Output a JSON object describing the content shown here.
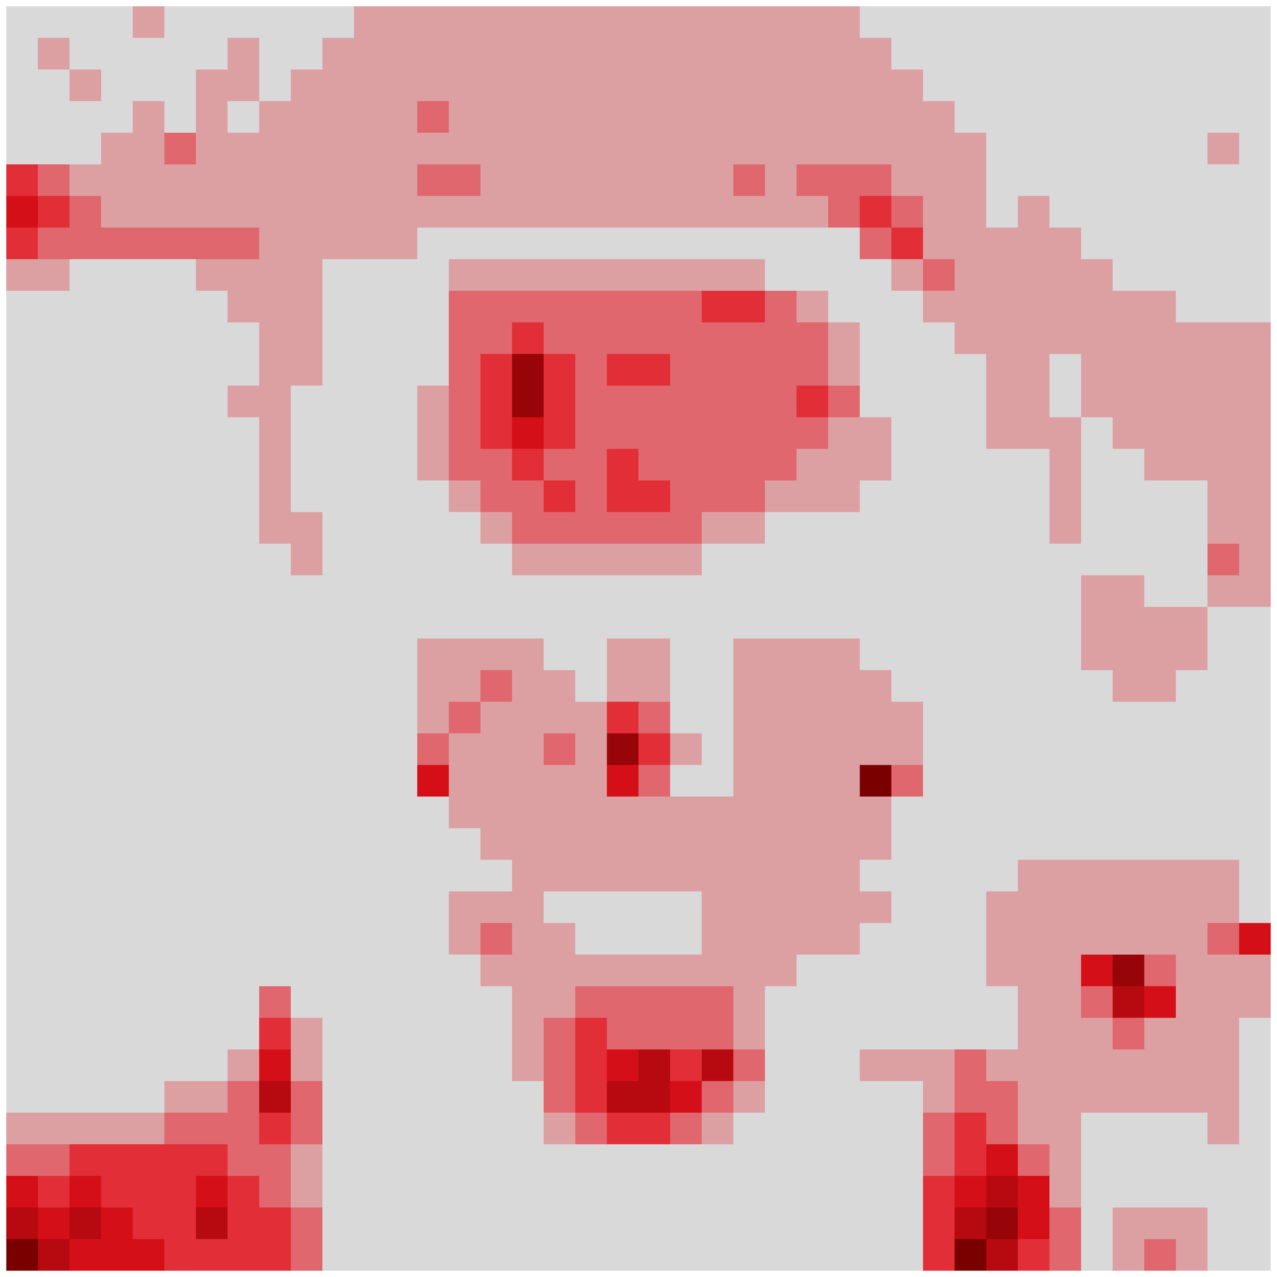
{
  "chart_data": {
    "type": "heatmap",
    "tick_labels": false,
    "cells": [
      [
        0,
        0,
        0,
        0,
        1,
        0,
        0,
        0,
        0,
        0,
        0,
        1,
        1,
        1,
        1,
        1,
        1,
        1,
        1,
        1,
        1,
        1,
        1,
        1,
        1,
        1,
        1,
        0,
        0,
        0,
        0,
        0,
        0,
        0,
        0,
        0,
        0,
        0,
        0,
        0
      ],
      [
        0,
        1,
        0,
        0,
        0,
        0,
        0,
        1,
        0,
        0,
        1,
        1,
        1,
        1,
        1,
        1,
        1,
        1,
        1,
        1,
        1,
        1,
        1,
        1,
        1,
        1,
        1,
        1,
        0,
        0,
        0,
        0,
        0,
        0,
        0,
        0,
        0,
        0,
        0,
        0
      ],
      [
        0,
        0,
        1,
        0,
        0,
        0,
        1,
        1,
        0,
        1,
        1,
        1,
        1,
        1,
        1,
        1,
        1,
        1,
        1,
        1,
        1,
        1,
        1,
        1,
        1,
        1,
        1,
        1,
        1,
        0,
        0,
        0,
        0,
        0,
        0,
        0,
        0,
        0,
        0,
        0
      ],
      [
        0,
        0,
        0,
        0,
        1,
        0,
        1,
        0,
        1,
        1,
        1,
        1,
        1,
        2,
        1,
        1,
        1,
        1,
        1,
        1,
        1,
        1,
        1,
        1,
        1,
        1,
        1,
        1,
        1,
        1,
        0,
        0,
        0,
        0,
        0,
        0,
        0,
        0,
        0,
        0
      ],
      [
        0,
        0,
        0,
        1,
        1,
        2,
        1,
        1,
        1,
        1,
        1,
        1,
        1,
        1,
        1,
        1,
        1,
        1,
        1,
        1,
        1,
        1,
        1,
        1,
        1,
        1,
        1,
        1,
        1,
        1,
        1,
        0,
        0,
        0,
        0,
        0,
        0,
        0,
        1,
        0
      ],
      [
        3,
        2,
        1,
        1,
        1,
        1,
        1,
        1,
        1,
        1,
        1,
        1,
        1,
        2,
        2,
        1,
        1,
        1,
        1,
        1,
        1,
        1,
        1,
        2,
        1,
        2,
        2,
        2,
        1,
        1,
        1,
        0,
        0,
        0,
        0,
        0,
        0,
        0,
        0,
        0
      ],
      [
        4,
        3,
        2,
        1,
        1,
        1,
        1,
        1,
        1,
        1,
        1,
        1,
        1,
        1,
        1,
        1,
        1,
        1,
        1,
        1,
        1,
        1,
        1,
        1,
        1,
        1,
        2,
        3,
        2,
        1,
        1,
        0,
        1,
        0,
        0,
        0,
        0,
        0,
        0,
        0
      ],
      [
        3,
        2,
        2,
        2,
        2,
        2,
        2,
        2,
        1,
        1,
        1,
        1,
        1,
        0,
        0,
        0,
        0,
        0,
        0,
        0,
        0,
        0,
        0,
        0,
        0,
        0,
        0,
        2,
        3,
        1,
        1,
        1,
        1,
        1,
        0,
        0,
        0,
        0,
        0,
        0
      ],
      [
        1,
        1,
        0,
        0,
        0,
        0,
        1,
        1,
        1,
        1,
        0,
        0,
        0,
        0,
        1,
        1,
        1,
        1,
        1,
        1,
        1,
        1,
        1,
        1,
        0,
        0,
        0,
        0,
        1,
        2,
        1,
        1,
        1,
        1,
        1,
        0,
        0,
        0,
        0,
        0
      ],
      [
        0,
        0,
        0,
        0,
        0,
        0,
        0,
        1,
        1,
        1,
        0,
        0,
        0,
        0,
        2,
        2,
        2,
        2,
        2,
        2,
        2,
        2,
        3,
        3,
        2,
        1,
        0,
        0,
        0,
        1,
        1,
        1,
        1,
        1,
        1,
        1,
        1,
        0,
        0,
        0
      ],
      [
        0,
        0,
        0,
        0,
        0,
        0,
        0,
        0,
        1,
        1,
        0,
        0,
        0,
        0,
        2,
        2,
        3,
        2,
        2,
        2,
        2,
        2,
        2,
        2,
        2,
        2,
        1,
        0,
        0,
        0,
        1,
        1,
        1,
        1,
        1,
        1,
        1,
        1,
        1,
        1
      ],
      [
        0,
        0,
        0,
        0,
        0,
        0,
        0,
        0,
        1,
        1,
        0,
        0,
        0,
        0,
        2,
        3,
        6,
        3,
        2,
        3,
        3,
        2,
        2,
        2,
        2,
        2,
        1,
        0,
        0,
        0,
        0,
        1,
        1,
        0,
        1,
        1,
        1,
        1,
        1,
        1
      ],
      [
        0,
        0,
        0,
        0,
        0,
        0,
        0,
        1,
        1,
        0,
        0,
        0,
        0,
        1,
        2,
        3,
        6,
        3,
        2,
        2,
        2,
        2,
        2,
        2,
        2,
        3,
        2,
        0,
        0,
        0,
        0,
        1,
        1,
        0,
        1,
        1,
        1,
        1,
        1,
        1
      ],
      [
        0,
        0,
        0,
        0,
        0,
        0,
        0,
        0,
        1,
        0,
        0,
        0,
        0,
        1,
        2,
        3,
        4,
        3,
        2,
        2,
        2,
        2,
        2,
        2,
        2,
        2,
        1,
        1,
        0,
        0,
        0,
        1,
        1,
        1,
        0,
        1,
        1,
        1,
        1,
        1
      ],
      [
        0,
        0,
        0,
        0,
        0,
        0,
        0,
        0,
        1,
        0,
        0,
        0,
        0,
        1,
        2,
        2,
        3,
        2,
        2,
        3,
        2,
        2,
        2,
        2,
        2,
        1,
        1,
        1,
        0,
        0,
        0,
        0,
        0,
        1,
        0,
        0,
        1,
        1,
        1,
        1
      ],
      [
        0,
        0,
        0,
        0,
        0,
        0,
        0,
        0,
        1,
        0,
        0,
        0,
        0,
        0,
        1,
        2,
        2,
        3,
        2,
        3,
        3,
        2,
        2,
        2,
        1,
        1,
        1,
        0,
        0,
        0,
        0,
        0,
        0,
        1,
        0,
        0,
        0,
        0,
        1,
        1
      ],
      [
        0,
        0,
        0,
        0,
        0,
        0,
        0,
        0,
        1,
        1,
        0,
        0,
        0,
        0,
        0,
        1,
        2,
        2,
        2,
        2,
        2,
        2,
        1,
        1,
        0,
        0,
        0,
        0,
        0,
        0,
        0,
        0,
        0,
        1,
        0,
        0,
        0,
        0,
        1,
        1
      ],
      [
        0,
        0,
        0,
        0,
        0,
        0,
        0,
        0,
        0,
        1,
        0,
        0,
        0,
        0,
        0,
        0,
        1,
        1,
        1,
        1,
        1,
        1,
        0,
        0,
        0,
        0,
        0,
        0,
        0,
        0,
        0,
        0,
        0,
        0,
        0,
        0,
        0,
        0,
        2,
        1
      ],
      [
        0,
        0,
        0,
        0,
        0,
        0,
        0,
        0,
        0,
        0,
        0,
        0,
        0,
        0,
        0,
        0,
        0,
        0,
        0,
        0,
        0,
        0,
        0,
        0,
        0,
        0,
        0,
        0,
        0,
        0,
        0,
        0,
        0,
        0,
        1,
        1,
        0,
        0,
        1,
        1
      ],
      [
        0,
        0,
        0,
        0,
        0,
        0,
        0,
        0,
        0,
        0,
        0,
        0,
        0,
        0,
        0,
        0,
        0,
        0,
        0,
        0,
        0,
        0,
        0,
        0,
        0,
        0,
        0,
        0,
        0,
        0,
        0,
        0,
        0,
        0,
        1,
        1,
        1,
        1,
        0,
        0
      ],
      [
        0,
        0,
        0,
        0,
        0,
        0,
        0,
        0,
        0,
        0,
        0,
        0,
        0,
        1,
        1,
        1,
        1,
        0,
        0,
        1,
        1,
        0,
        0,
        1,
        1,
        1,
        1,
        0,
        0,
        0,
        0,
        0,
        0,
        0,
        1,
        1,
        1,
        1,
        0,
        0
      ],
      [
        0,
        0,
        0,
        0,
        0,
        0,
        0,
        0,
        0,
        0,
        0,
        0,
        0,
        1,
        1,
        2,
        1,
        1,
        0,
        1,
        1,
        0,
        0,
        1,
        1,
        1,
        1,
        1,
        0,
        0,
        0,
        0,
        0,
        0,
        0,
        1,
        1,
        0,
        0,
        0
      ],
      [
        0,
        0,
        0,
        0,
        0,
        0,
        0,
        0,
        0,
        0,
        0,
        0,
        0,
        1,
        2,
        1,
        1,
        1,
        1,
        3,
        2,
        0,
        0,
        1,
        1,
        1,
        1,
        1,
        1,
        0,
        0,
        0,
        0,
        0,
        0,
        0,
        0,
        0,
        0,
        0
      ],
      [
        0,
        0,
        0,
        0,
        0,
        0,
        0,
        0,
        0,
        0,
        0,
        0,
        0,
        2,
        1,
        1,
        1,
        2,
        1,
        6,
        3,
        1,
        0,
        1,
        1,
        1,
        1,
        1,
        1,
        0,
        0,
        0,
        0,
        0,
        0,
        0,
        0,
        0,
        0,
        0
      ],
      [
        0,
        0,
        0,
        0,
        0,
        0,
        0,
        0,
        0,
        0,
        0,
        0,
        0,
        4,
        1,
        1,
        1,
        1,
        1,
        4,
        2,
        0,
        0,
        1,
        1,
        1,
        1,
        7,
        2,
        0,
        0,
        0,
        0,
        0,
        0,
        0,
        0,
        0,
        0,
        0
      ],
      [
        0,
        0,
        0,
        0,
        0,
        0,
        0,
        0,
        0,
        0,
        0,
        0,
        0,
        0,
        1,
        1,
        1,
        1,
        1,
        1,
        1,
        1,
        1,
        1,
        1,
        1,
        1,
        1,
        0,
        0,
        0,
        0,
        0,
        0,
        0,
        0,
        0,
        0,
        0,
        0
      ],
      [
        0,
        0,
        0,
        0,
        0,
        0,
        0,
        0,
        0,
        0,
        0,
        0,
        0,
        0,
        0,
        1,
        1,
        1,
        1,
        1,
        1,
        1,
        1,
        1,
        1,
        1,
        1,
        1,
        0,
        0,
        0,
        0,
        0,
        0,
        0,
        0,
        0,
        0,
        0,
        0
      ],
      [
        0,
        0,
        0,
        0,
        0,
        0,
        0,
        0,
        0,
        0,
        0,
        0,
        0,
        0,
        0,
        0,
        1,
        1,
        1,
        1,
        1,
        1,
        1,
        1,
        1,
        1,
        1,
        0,
        0,
        0,
        0,
        0,
        1,
        1,
        1,
        1,
        1,
        1,
        1,
        0
      ],
      [
        0,
        0,
        0,
        0,
        0,
        0,
        0,
        0,
        0,
        0,
        0,
        0,
        0,
        0,
        1,
        1,
        1,
        0,
        0,
        0,
        0,
        0,
        1,
        1,
        1,
        1,
        1,
        1,
        0,
        0,
        0,
        1,
        1,
        1,
        1,
        1,
        1,
        1,
        1,
        0
      ],
      [
        0,
        0,
        0,
        0,
        0,
        0,
        0,
        0,
        0,
        0,
        0,
        0,
        0,
        0,
        1,
        2,
        1,
        1,
        0,
        0,
        0,
        0,
        1,
        1,
        1,
        1,
        1,
        0,
        0,
        0,
        0,
        1,
        1,
        1,
        1,
        1,
        1,
        1,
        2,
        4
      ],
      [
        0,
        0,
        0,
        0,
        0,
        0,
        0,
        0,
        0,
        0,
        0,
        0,
        0,
        0,
        0,
        1,
        1,
        1,
        1,
        1,
        1,
        1,
        1,
        1,
        1,
        0,
        0,
        0,
        0,
        0,
        0,
        1,
        1,
        1,
        4,
        6,
        2,
        1,
        1,
        1
      ],
      [
        0,
        0,
        0,
        0,
        0,
        0,
        0,
        0,
        2,
        0,
        0,
        0,
        0,
        0,
        0,
        0,
        1,
        1,
        2,
        2,
        2,
        2,
        2,
        1,
        0,
        0,
        0,
        0,
        0,
        0,
        0,
        0,
        1,
        1,
        2,
        5,
        4,
        1,
        1,
        1
      ],
      [
        0,
        0,
        0,
        0,
        0,
        0,
        0,
        0,
        3,
        1,
        0,
        0,
        0,
        0,
        0,
        0,
        1,
        2,
        3,
        2,
        2,
        2,
        2,
        1,
        0,
        0,
        0,
        0,
        0,
        0,
        0,
        0,
        1,
        1,
        1,
        2,
        1,
        1,
        1,
        0
      ],
      [
        0,
        0,
        0,
        0,
        0,
        0,
        0,
        1,
        4,
        1,
        0,
        0,
        0,
        0,
        0,
        0,
        1,
        2,
        3,
        4,
        5,
        3,
        5,
        2,
        0,
        0,
        0,
        1,
        1,
        1,
        2,
        1,
        1,
        1,
        1,
        1,
        1,
        1,
        1,
        0
      ],
      [
        0,
        0,
        0,
        0,
        0,
        1,
        1,
        2,
        5,
        2,
        0,
        0,
        0,
        0,
        0,
        0,
        0,
        2,
        3,
        5,
        5,
        4,
        2,
        1,
        0,
        0,
        0,
        0,
        0,
        1,
        2,
        2,
        1,
        1,
        1,
        1,
        1,
        1,
        1,
        0
      ],
      [
        1,
        1,
        1,
        1,
        1,
        2,
        2,
        2,
        3,
        2,
        0,
        0,
        0,
        0,
        0,
        0,
        0,
        1,
        2,
        3,
        3,
        2,
        1,
        0,
        0,
        0,
        0,
        0,
        0,
        2,
        3,
        2,
        1,
        1,
        0,
        0,
        0,
        0,
        1,
        0
      ],
      [
        2,
        2,
        3,
        3,
        3,
        3,
        3,
        2,
        2,
        1,
        0,
        0,
        0,
        0,
        0,
        0,
        0,
        0,
        0,
        0,
        0,
        0,
        0,
        0,
        0,
        0,
        0,
        0,
        0,
        2,
        3,
        4,
        2,
        1,
        0,
        0,
        0,
        0,
        0,
        0
      ],
      [
        4,
        3,
        4,
        3,
        3,
        3,
        4,
        3,
        2,
        1,
        0,
        0,
        0,
        0,
        0,
        0,
        0,
        0,
        0,
        0,
        0,
        0,
        0,
        0,
        0,
        0,
        0,
        0,
        0,
        3,
        4,
        5,
        4,
        1,
        0,
        0,
        0,
        0,
        0,
        0
      ],
      [
        5,
        4,
        5,
        4,
        3,
        3,
        5,
        3,
        3,
        2,
        0,
        0,
        0,
        0,
        0,
        0,
        0,
        0,
        0,
        0,
        0,
        0,
        0,
        0,
        0,
        0,
        0,
        0,
        0,
        3,
        5,
        6,
        4,
        2,
        0,
        1,
        1,
        1,
        0,
        0
      ],
      [
        7,
        5,
        4,
        4,
        4,
        3,
        3,
        3,
        3,
        2,
        0,
        0,
        0,
        0,
        0,
        0,
        0,
        0,
        0,
        0,
        0,
        0,
        0,
        0,
        0,
        0,
        0,
        0,
        0,
        3,
        7,
        5,
        3,
        2,
        0,
        1,
        2,
        1,
        0,
        0
      ]
    ]
  }
}
